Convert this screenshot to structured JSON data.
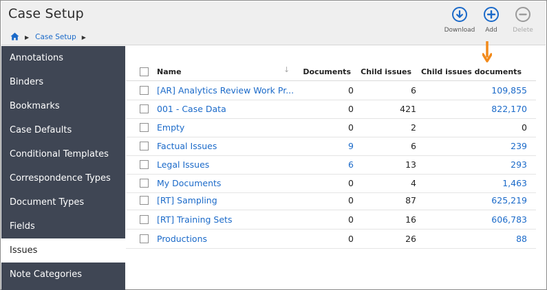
{
  "header": {
    "title": "Case Setup",
    "breadcrumb": {
      "current": "Case Setup"
    }
  },
  "toolbar": {
    "download_label": "Download",
    "add_label": "Add",
    "delete_label": "Delete"
  },
  "sidebar": {
    "items": [
      {
        "label": "Annotations"
      },
      {
        "label": "Binders"
      },
      {
        "label": "Bookmarks"
      },
      {
        "label": "Case Defaults"
      },
      {
        "label": "Conditional Templates"
      },
      {
        "label": "Correspondence Types"
      },
      {
        "label": "Document Types"
      },
      {
        "label": "Fields"
      },
      {
        "label": "Issues",
        "active": true
      },
      {
        "label": "Note Categories"
      }
    ]
  },
  "table": {
    "columns": {
      "name": "Name",
      "documents": "Documents",
      "child_issues": "Child issues",
      "child_issues_documents": "Child issues documents"
    },
    "rows": [
      {
        "name": "[AR] Analytics Review Work Pr...",
        "documents": "0",
        "child_issues": "6",
        "child_issues_documents": "109,855"
      },
      {
        "name": "001 - Case Data",
        "documents": "0",
        "child_issues": "421",
        "child_issues_documents": "822,170"
      },
      {
        "name": "Empty",
        "documents": "0",
        "child_issues": "2",
        "child_issues_documents": "0"
      },
      {
        "name": "Factual Issues",
        "documents": "9",
        "child_issues": "6",
        "child_issues_documents": "239"
      },
      {
        "name": "Legal Issues",
        "documents": "6",
        "child_issues": "13",
        "child_issues_documents": "293"
      },
      {
        "name": "My Documents",
        "documents": "0",
        "child_issues": "4",
        "child_issues_documents": "1,463"
      },
      {
        "name": "[RT] Sampling",
        "documents": "0",
        "child_issues": "87",
        "child_issues_documents": "625,219"
      },
      {
        "name": "[RT] Training Sets",
        "documents": "0",
        "child_issues": "16",
        "child_issues_documents": "606,783"
      },
      {
        "name": "Productions",
        "documents": "0",
        "child_issues": "26",
        "child_issues_documents": "88"
      }
    ]
  },
  "colors": {
    "accent": "#1b6ac9",
    "sidebar_bg": "#3f4654",
    "arrow": "#f28a1a"
  }
}
